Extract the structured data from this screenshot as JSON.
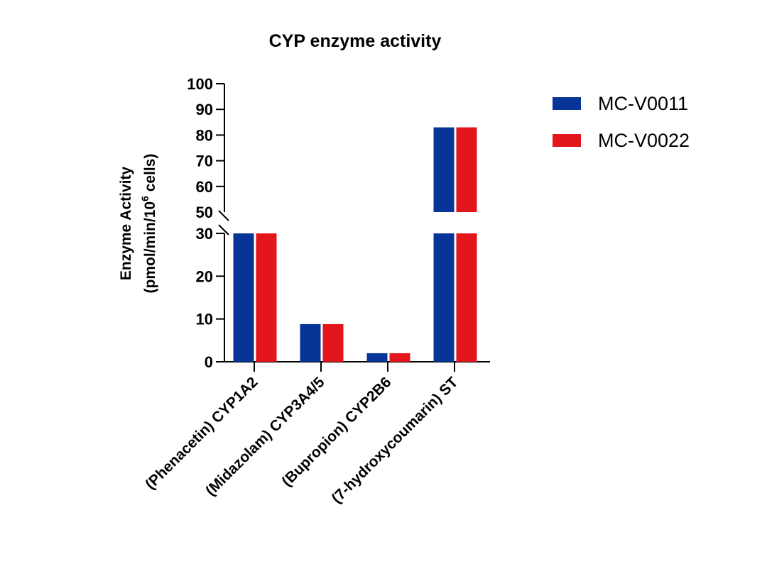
{
  "chart_data": {
    "type": "bar",
    "title": "CYP enzyme activity",
    "ylabel_line1": "Enzyme Activity",
    "ylabel_line2_prefix": "(pmol/min/10",
    "ylabel_line2_sup": "6",
    "ylabel_line2_suffix": " cells)",
    "xlabel": "",
    "categories": [
      "(Phenacetin) CYP1A2",
      "(Midazolam) CYP3A4/5",
      "(Bupropion) CYP2B6",
      "(7-hydroxycoumarin) ST"
    ],
    "series": [
      {
        "name": "MC-V0011",
        "color": "#063597",
        "values": [
          30,
          8.8,
          2,
          83
        ]
      },
      {
        "name": "MC-V0022",
        "color": "#e3161c",
        "values": [
          30,
          8.8,
          2,
          83
        ]
      }
    ],
    "y_axis_break": {
      "lower_range": [
        0,
        30
      ],
      "upper_range": [
        50,
        100
      ]
    },
    "yticks_lower": [
      "0",
      "10",
      "20",
      "30"
    ],
    "yticks_upper": [
      "50",
      "60",
      "70",
      "80",
      "90",
      "100"
    ],
    "legend_position": "right",
    "grid": false
  }
}
